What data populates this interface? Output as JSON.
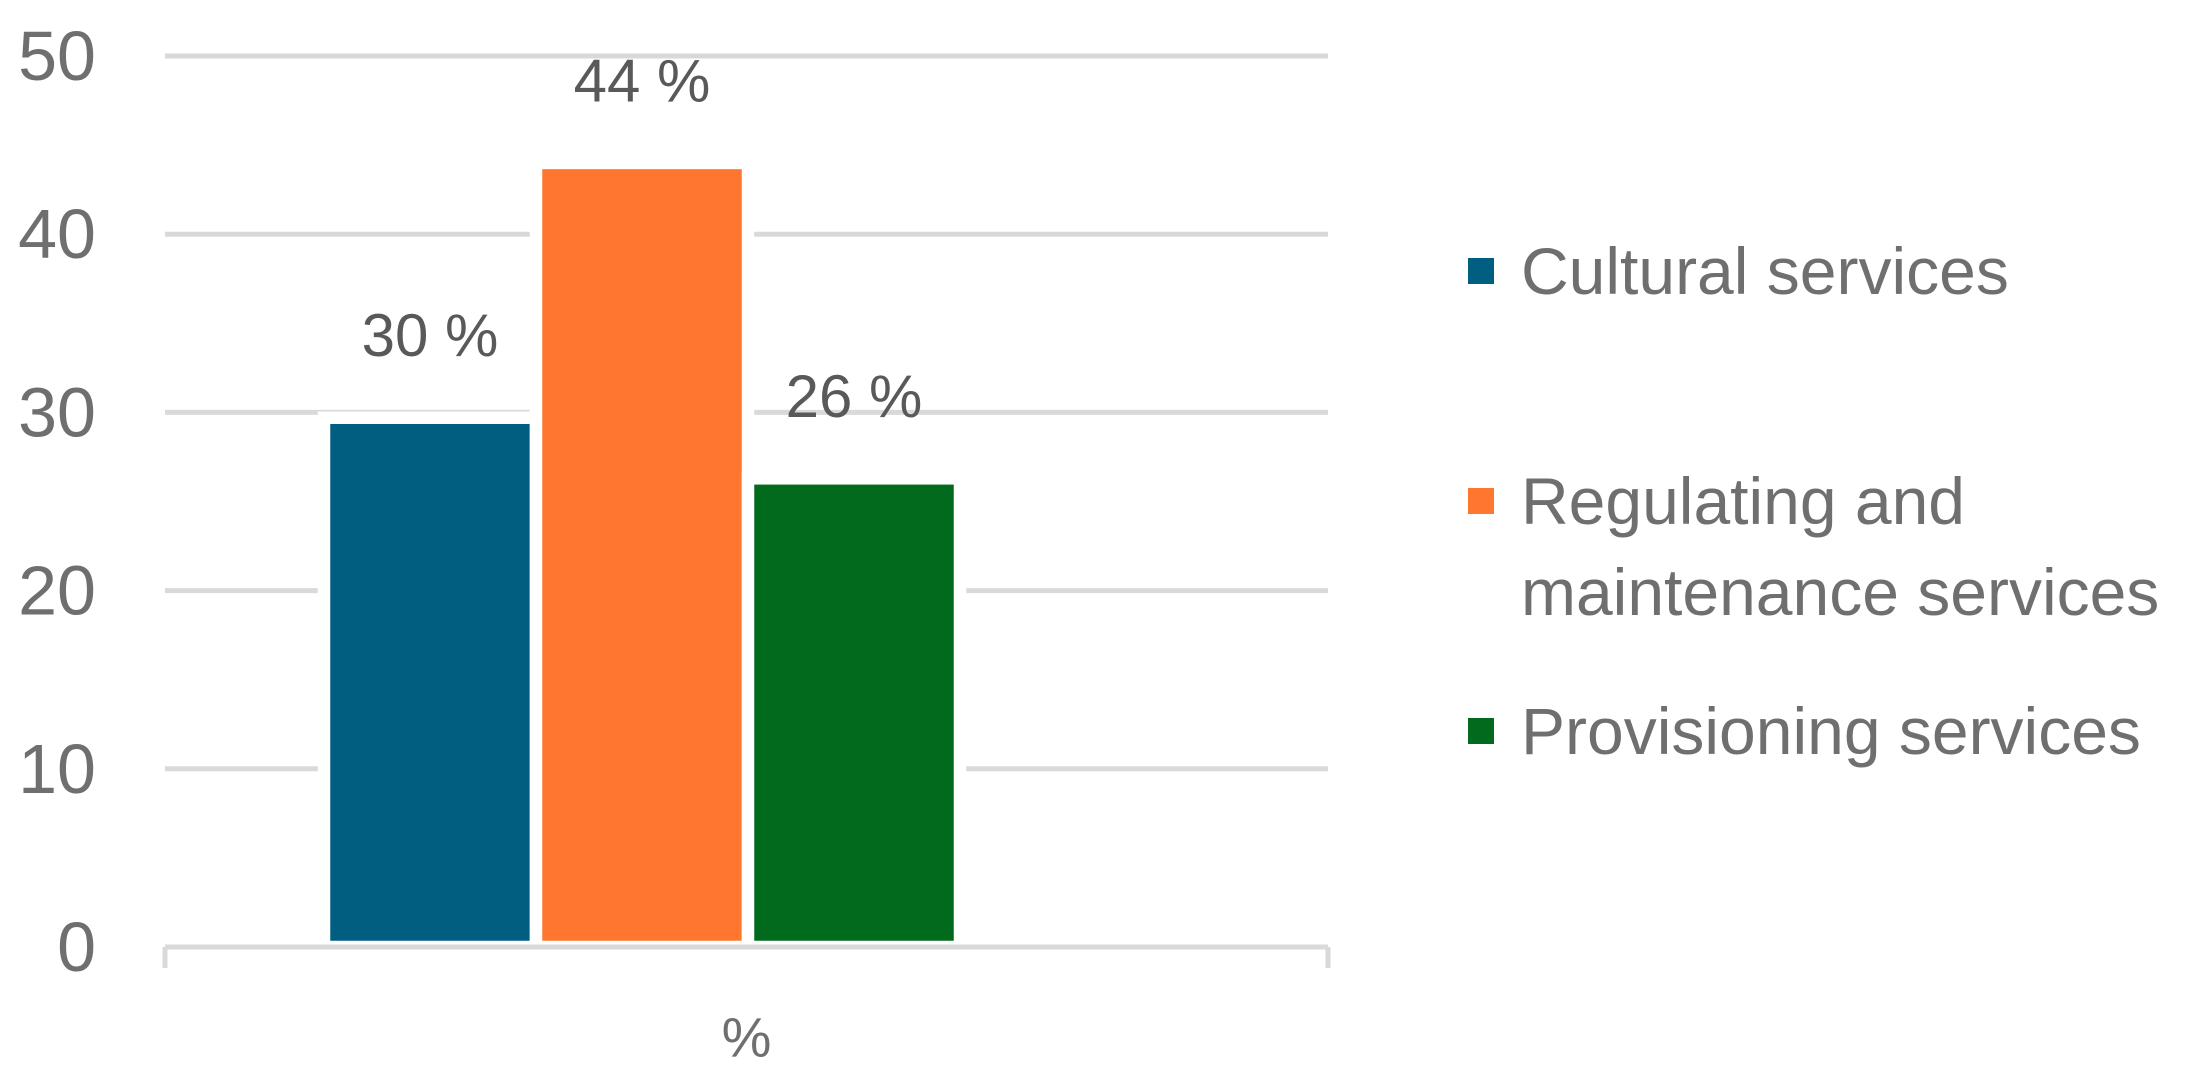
{
  "chart_data": {
    "type": "bar",
    "categories": [
      "%"
    ],
    "series": [
      {
        "name": "Cultural services",
        "values": [
          29.7
        ],
        "data_labels": [
          "30 %"
        ],
        "color": "#005E80"
      },
      {
        "name": "Regulating and maintenance services",
        "values": [
          44.0
        ],
        "data_labels": [
          "44 %"
        ],
        "color": "#FF772F"
      },
      {
        "name": "Provisioning services",
        "values": [
          26.3
        ],
        "data_labels": [
          "26 %"
        ],
        "color": "#016A1C"
      }
    ],
    "ylim": [
      0,
      50
    ],
    "yticks": [
      0,
      10,
      20,
      30,
      40,
      50
    ],
    "grid": true,
    "legend": "right"
  }
}
